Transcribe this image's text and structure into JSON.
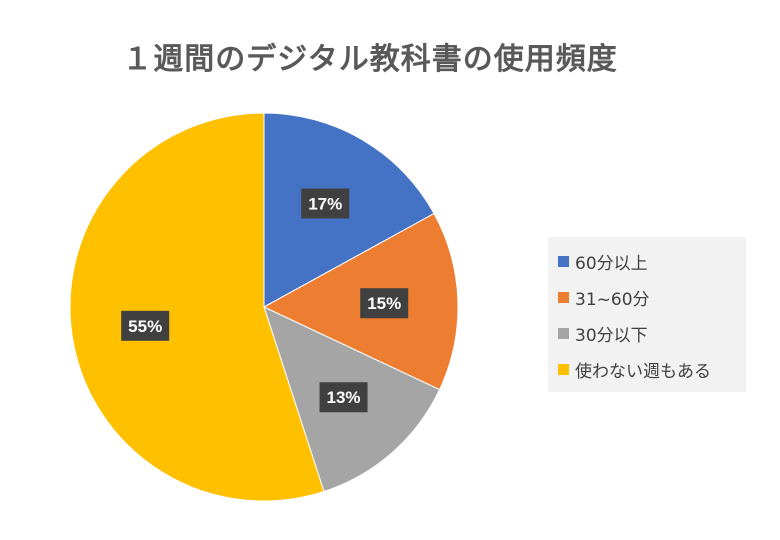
{
  "chart_data": {
    "type": "pie",
    "title": "１週間のデジタル教科書の使用頻度",
    "categories": [
      "60分以上",
      "31~60分",
      "30分以下",
      "使わない週もある"
    ],
    "values": [
      17,
      15,
      13,
      55
    ],
    "labels": [
      "17%",
      "15%",
      "13%",
      "55%"
    ],
    "colors": [
      "#4472c4",
      "#ed7d31",
      "#a5a5a5",
      "#ffc000"
    ],
    "legend_position": "right"
  }
}
